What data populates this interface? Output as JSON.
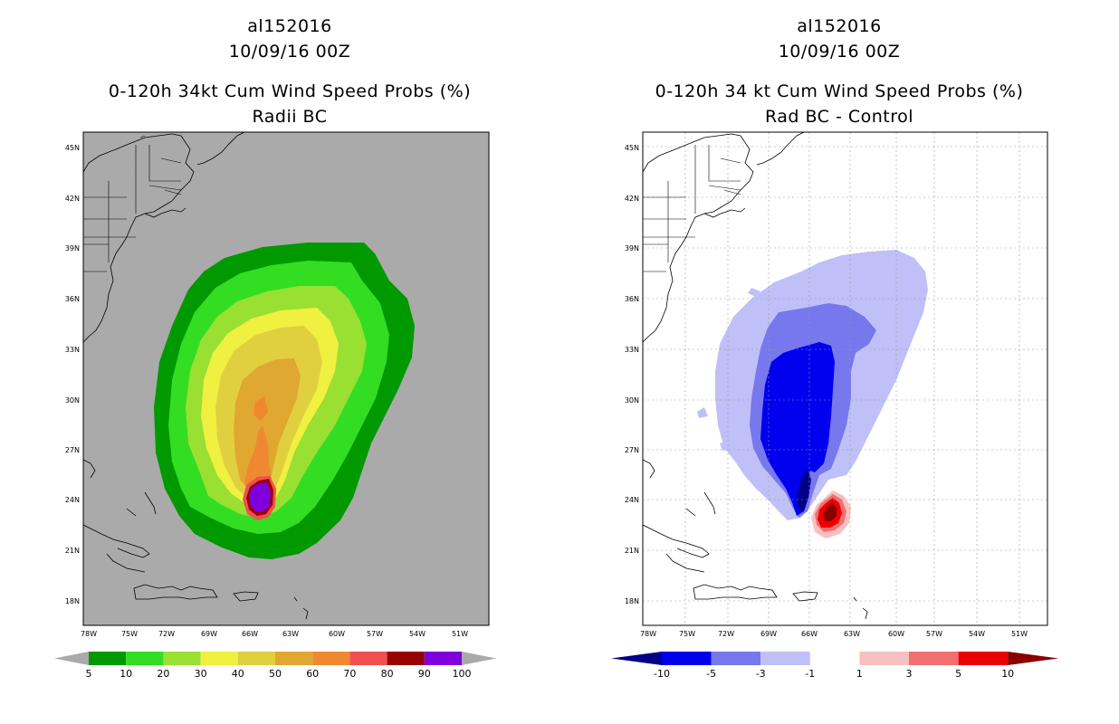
{
  "left": {
    "title": [
      "al152016",
      "10/09/16 00Z",
      "0-120h 34kt Cum Wind Speed Probs (%)",
      "Radii BC"
    ],
    "colorbar": {
      "labels": [
        "5",
        "10",
        "20",
        "30",
        "40",
        "50",
        "60",
        "70",
        "80",
        "90",
        "100"
      ],
      "colors": [
        "#009900",
        "#33dd22",
        "#99e033",
        "#f0f040",
        "#e0d040",
        "#e0a830",
        "#f08830",
        "#f05050",
        "#990000",
        "#7f00dd"
      ],
      "end_colors": [
        "#aaaaaa",
        "#aaaaaa"
      ]
    },
    "background_color": "#aaaaaa"
  },
  "right": {
    "title": [
      "al152016",
      "10/09/16 00Z",
      "0-120h 34 kt Cum Wind Speed Probs (%)",
      "Rad BC - Control"
    ],
    "colorbar": {
      "labels": [
        "-10",
        "-5",
        "-3",
        "-1",
        "1",
        "3",
        "5",
        "10"
      ],
      "colors": [
        "#0000ee",
        "#7777ee",
        "#c0c0f8",
        "#ffffff",
        "#f8c0c0",
        "#f07070",
        "#ee0000"
      ],
      "end_colors": [
        "#000088",
        "#880000"
      ]
    },
    "background_color": "#ffffff"
  },
  "axes": {
    "lon_labels": [
      "78W",
      "75W",
      "72W",
      "69W",
      "66W",
      "63W",
      "60W",
      "57W",
      "54W",
      "51W"
    ],
    "lat_labels": [
      "45N",
      "42N",
      "39N",
      "36N",
      "33N",
      "30N",
      "27N",
      "24N",
      "21N",
      "18N"
    ]
  }
}
